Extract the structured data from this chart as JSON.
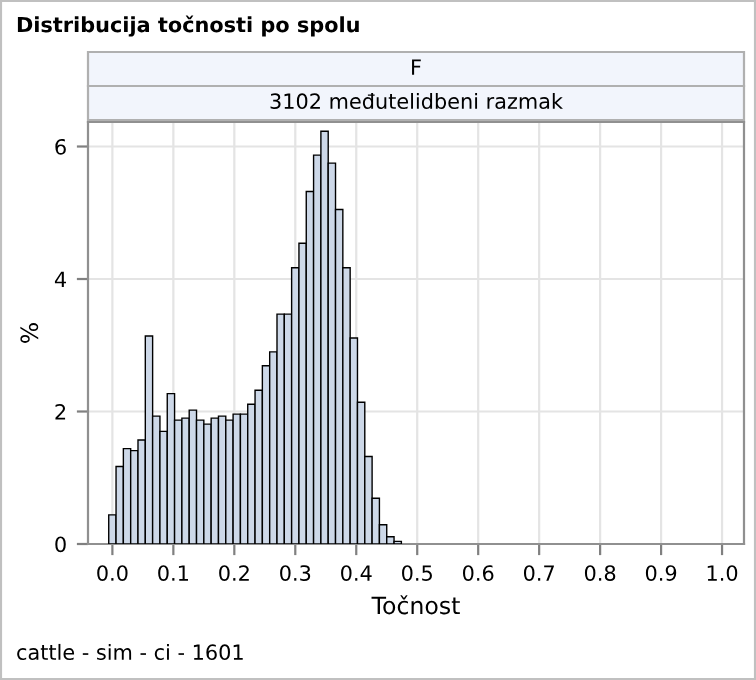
{
  "chart_data": {
    "type": "histogram",
    "title": "Distribucija točnosti po spolu",
    "subtitle": "F",
    "annotations": [
      "3102 međutelidbeni razmak",
      "cattle - sim - ci - 1601"
    ],
    "xlabel": "Točnost",
    "ylabel": "%",
    "bins": [
      -0.006,
      0.006,
      0.018,
      0.03,
      0.042,
      0.054,
      0.066,
      0.078,
      0.09,
      0.102,
      0.114,
      0.126,
      0.138,
      0.15,
      0.162,
      0.174,
      0.186,
      0.198,
      0.21,
      0.222,
      0.234,
      0.246,
      0.258,
      0.27,
      0.282,
      0.294,
      0.306,
      0.318,
      0.33,
      0.342,
      0.354,
      0.366,
      0.378,
      0.39,
      0.402,
      0.414,
      0.426,
      0.438,
      0.45,
      0.462,
      0.474
    ],
    "values": [
      0.44,
      1.17,
      1.44,
      1.41,
      1.57,
      3.14,
      1.93,
      1.7,
      2.27,
      1.87,
      1.9,
      2.02,
      1.87,
      1.81,
      1.9,
      1.93,
      1.87,
      1.96,
      1.96,
      2.11,
      2.32,
      2.69,
      2.9,
      3.47,
      3.47,
      4.17,
      4.54,
      5.32,
      5.87,
      6.23,
      5.75,
      5.05,
      4.17,
      3.11,
      2.14,
      1.32,
      0.69,
      0.29,
      0.11,
      0.04
    ],
    "color": "#cdd8e8",
    "xlim": [
      -0.04,
      1.036
    ],
    "ylim": [
      0,
      6.37
    ],
    "xticks": [
      {
        "value": 0,
        "label": "0.0"
      },
      {
        "value": 0.1,
        "label": "0.1"
      },
      {
        "value": 0.2,
        "label": "0.2"
      },
      {
        "value": 0.3,
        "label": "0.3"
      },
      {
        "value": 0.4,
        "label": "0.4"
      },
      {
        "value": 0.5,
        "label": "0.5"
      },
      {
        "value": 0.6,
        "label": "0.6"
      },
      {
        "value": 0.7,
        "label": "0.7"
      },
      {
        "value": 0.8,
        "label": "0.8"
      },
      {
        "value": 0.9,
        "label": "0.9"
      },
      {
        "value": 1,
        "label": "1.0"
      }
    ],
    "yticks": [
      0,
      2,
      4,
      6
    ],
    "grid": true,
    "legend": false
  }
}
